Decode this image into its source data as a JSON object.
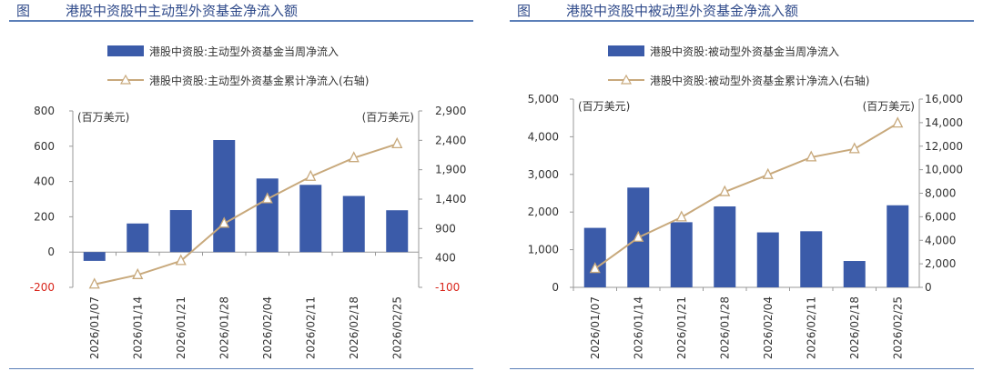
{
  "colors": {
    "bar": "#3b5ba9",
    "line": "#c8a97c",
    "title": "#2f4a8a",
    "neg": "#d9261c",
    "axis": "#999999"
  },
  "chart_data": [
    {
      "type": "bar",
      "figure_label": "图",
      "title": "港股中资股中主动型外资基金净流入额",
      "legend": [
        "港股中资股:主动型外资基金当周净流入",
        "港股中资股:主动型外资基金累计净流入(右轴)"
      ],
      "unit_left": "(百万美元)",
      "unit_right": "(百万美元)",
      "categories": [
        "2026/01/07",
        "2026/01/14",
        "2026/01/21",
        "2026/01/28",
        "2026/02/04",
        "2026/02/11",
        "2026/02/18",
        "2026/02/25"
      ],
      "series": [
        {
          "name": "港股中资股:主动型外资基金当周净流入",
          "type": "bar",
          "axis": "left",
          "values": [
            -50,
            162,
            238,
            635,
            417,
            381,
            318,
            237
          ]
        },
        {
          "name": "港股中资股:主动型外资基金累计净流入(右轴)",
          "type": "line",
          "axis": "right",
          "values": [
            -50,
            112,
            350,
            985,
            1402,
            1783,
            2101,
            2338
          ]
        }
      ],
      "ylim_left": [
        -200,
        800
      ],
      "yticks_left": [
        "800",
        "600",
        "400",
        "200",
        "0",
        "-200"
      ],
      "ylim_right": [
        -100,
        2900
      ],
      "yticks_right": [
        "2,900",
        "2,400",
        "1,900",
        "1,400",
        "900",
        "400",
        "-100"
      ]
    },
    {
      "type": "bar",
      "figure_label": "图",
      "title": "港股中资股中被动型外资基金净流入额",
      "legend": [
        "港股中资股:被动型外资基金当周净流入",
        "港股中资股:被动型外资基金累计净流入(右轴)"
      ],
      "unit_left": "(百万美元)",
      "unit_right": "(百万美元)",
      "categories": [
        "2026/01/07",
        "2026/01/14",
        "2026/01/21",
        "2026/01/28",
        "2026/02/04",
        "2026/02/11",
        "2026/02/18",
        "2026/02/25"
      ],
      "series": [
        {
          "name": "港股中资股:被动型外资基金当周净流入",
          "type": "bar",
          "axis": "left",
          "values": [
            1580,
            2650,
            1730,
            2150,
            1460,
            1490,
            700,
            2180
          ]
        },
        {
          "name": "港股中资股:被动型外资基金累计净流入(右轴)",
          "type": "line",
          "axis": "right",
          "values": [
            1580,
            4230,
            5960,
            8110,
            9570,
            11060,
            11760,
            13940
          ]
        }
      ],
      "ylim_left": [
        0,
        5000
      ],
      "yticks_left": [
        "5,000",
        "4,000",
        "3,000",
        "2,000",
        "1,000",
        "0"
      ],
      "ylim_right": [
        0,
        16000
      ],
      "yticks_right": [
        "16,000",
        "14,000",
        "12,000",
        "10,000",
        "8,000",
        "6,000",
        "4,000",
        "2,000",
        "0"
      ]
    }
  ]
}
